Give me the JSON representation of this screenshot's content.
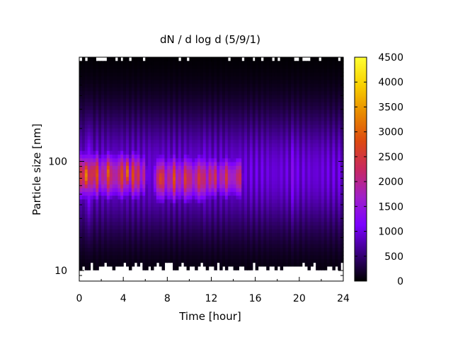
{
  "chart_data": {
    "type": "heatmap",
    "title": "dN / d log d (5/9/1)",
    "xlabel": "Time [hour]",
    "ylabel": "Particle size [nm]",
    "x_ticks": [
      "0",
      "4",
      "8",
      "12",
      "16",
      "20",
      "24"
    ],
    "y_ticks": [
      "10",
      "100"
    ],
    "colorbar_ticks": [
      "0",
      "500",
      "1000",
      "1500",
      "2000",
      "2500",
      "3000",
      "3500",
      "4000",
      "4500"
    ],
    "xlim": [
      0,
      24
    ],
    "ylim": [
      8,
      900
    ],
    "y_scale": "log",
    "zlim": [
      0,
      4500
    ],
    "colormap": [
      "#000000",
      "#3a0080",
      "#7b00ff",
      "#a020c8",
      "#c82860",
      "#dd4a10",
      "#e88a00",
      "#f8d000",
      "#ffff33"
    ],
    "background_level": 1100,
    "mode_segments": [
      {
        "t_start": 0.0,
        "t_end": 5.8,
        "peak": 3000,
        "center_nm": 75,
        "width_decades": 0.22
      },
      {
        "t_start": 7.0,
        "t_end": 11.7,
        "peak": 2900,
        "center_nm": 70,
        "width_decades": 0.22
      },
      {
        "t_start": 11.7,
        "t_end": 14.6,
        "peak": 2700,
        "center_nm": 72,
        "width_decades": 0.2
      }
    ],
    "hot_spots": [
      {
        "t": 0.7,
        "center_nm": 75,
        "peak": 3800
      },
      {
        "t": 1.4,
        "center_nm": 80,
        "peak": 3400
      },
      {
        "t": 2.6,
        "center_nm": 80,
        "peak": 3300
      },
      {
        "t": 4.4,
        "center_nm": 80,
        "peak": 3300
      },
      {
        "t": 7.4,
        "center_nm": 70,
        "peak": 3400
      },
      {
        "t": 8.5,
        "center_nm": 70,
        "peak": 3000
      }
    ],
    "spikes": [
      {
        "t": 0.9,
        "extra": 900
      },
      {
        "t": 11.5,
        "extra": 900
      },
      {
        "t": 19.5,
        "extra": 1400
      }
    ]
  }
}
